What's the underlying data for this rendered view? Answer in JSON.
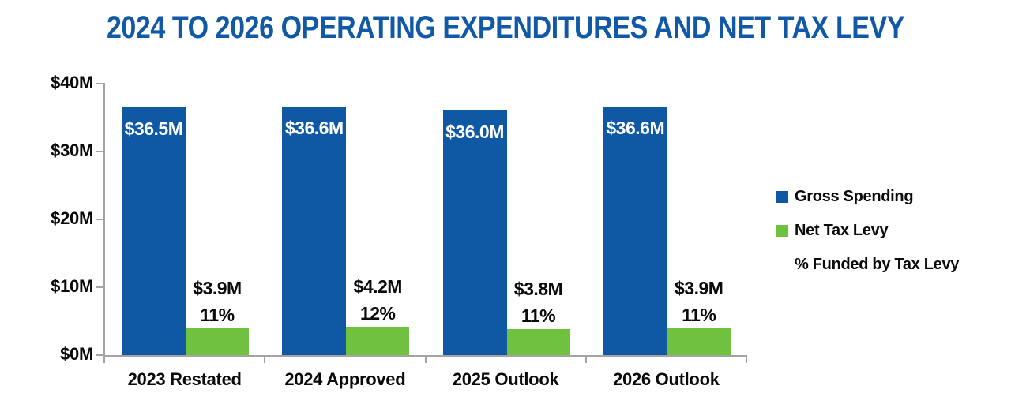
{
  "chart_data": {
    "type": "bar",
    "title": "2024 TO 2026 OPERATING EXPENDITURES AND NET TAX LEVY",
    "categories": [
      "2023 Restated",
      "2024 Approved",
      "2025 Outlook",
      "2026 Outlook"
    ],
    "series": [
      {
        "name": "Gross Spending",
        "color": "#0E58A4",
        "values": [
          36.5,
          36.6,
          36.0,
          36.6
        ],
        "labels": [
          "$36.5M",
          "$36.6M",
          "$36.0M",
          "$36.6M"
        ]
      },
      {
        "name": "Net Tax Levy",
        "color": "#6FC13F",
        "values": [
          3.9,
          4.2,
          3.8,
          3.9
        ],
        "labels": [
          "$3.9M",
          "$4.2M",
          "$3.8M",
          "$3.9M"
        ]
      }
    ],
    "pct_funded": {
      "name": "% Funded by Tax Levy",
      "values": [
        "11%",
        "12%",
        "11%",
        "11%"
      ]
    },
    "y_axis": {
      "ticks": [
        "$40M",
        "$30M",
        "$20M",
        "$10M",
        "$0M"
      ],
      "tick_values": [
        40,
        30,
        20,
        10,
        0
      ],
      "ylim": [
        0,
        40
      ]
    },
    "legend": [
      {
        "label": "Gross Spending",
        "swatch": "#0E58A4"
      },
      {
        "label": "Net Tax Levy",
        "swatch": "#6FC13F"
      },
      {
        "label": "% Funded by Tax Levy",
        "swatch": null
      }
    ],
    "legend_position": "right",
    "grid": false,
    "colors": {
      "title": "#1159A7",
      "axis": "#A3A3A3",
      "bar_value_text": "#FFFFFF",
      "annotation_text": "#0A0A0A"
    }
  }
}
